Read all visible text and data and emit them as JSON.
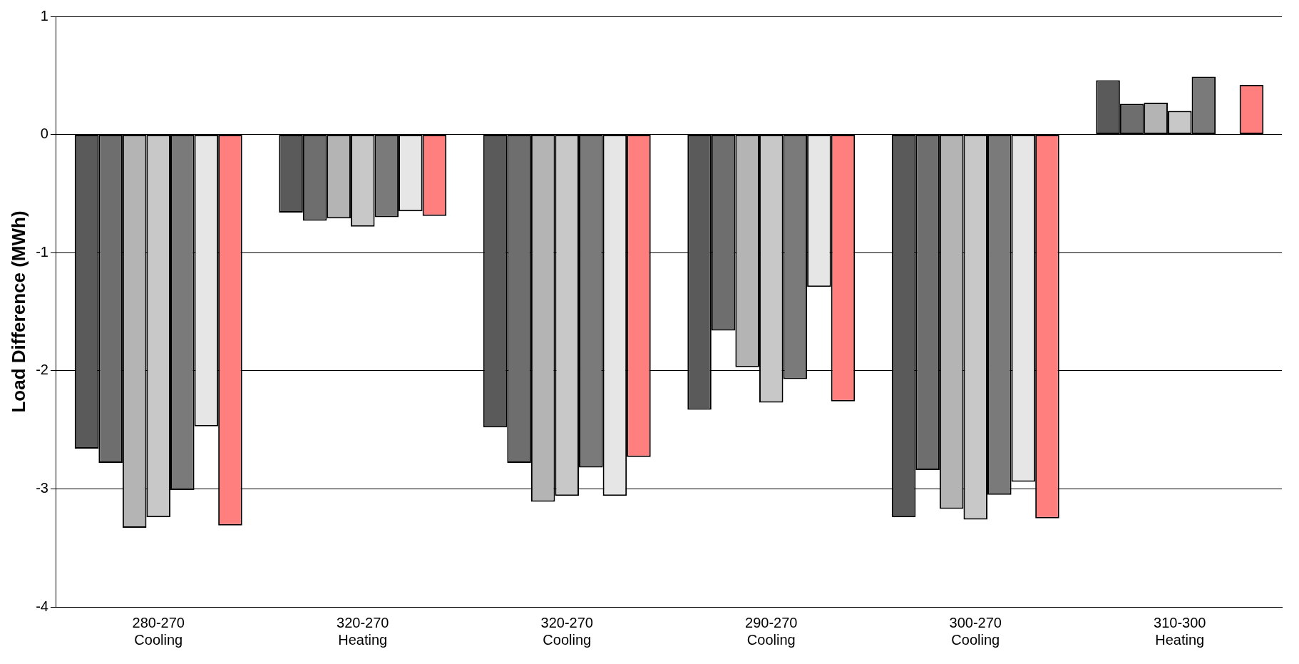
{
  "chart_data": {
    "type": "bar",
    "ylabel": "Load Difference (MWh)",
    "categories": [
      "280-270\nCooling",
      "320-270\nHeating",
      "320-270\nCooling",
      "290-270\nCooling",
      "300-270\nCooling",
      "310-300\nHeating"
    ],
    "series": [
      {
        "color": "#5a5a5a",
        "values": [
          -2.66,
          -0.66,
          -2.48,
          -2.33,
          -3.24,
          0.46
        ]
      },
      {
        "color": "#6e6e6e",
        "values": [
          -2.78,
          -0.73,
          -2.78,
          -1.66,
          -2.84,
          0.26
        ]
      },
      {
        "color": "#b4b4b4",
        "values": [
          -3.33,
          -0.71,
          -3.11,
          -1.97,
          -3.17,
          0.27
        ]
      },
      {
        "color": "#c8c8c8",
        "values": [
          -3.24,
          -0.78,
          -3.06,
          -2.27,
          -3.26,
          0.2
        ]
      },
      {
        "color": "#7a7a7a",
        "values": [
          -3.01,
          -0.7,
          -2.82,
          -2.07,
          -3.05,
          0.49
        ]
      },
      {
        "color": "#e6e6e6",
        "values": [
          -2.47,
          -0.65,
          -3.06,
          -1.29,
          -2.94,
          null
        ]
      },
      {
        "color": "#ff7f7f",
        "values": [
          -3.31,
          -0.69,
          -2.73,
          -2.26,
          -3.25,
          0.42
        ]
      }
    ],
    "ylim": [
      -4,
      1
    ],
    "yticks": [
      -4,
      -3,
      -2,
      -1,
      0,
      1
    ],
    "grid": "y",
    "legend": false
  }
}
